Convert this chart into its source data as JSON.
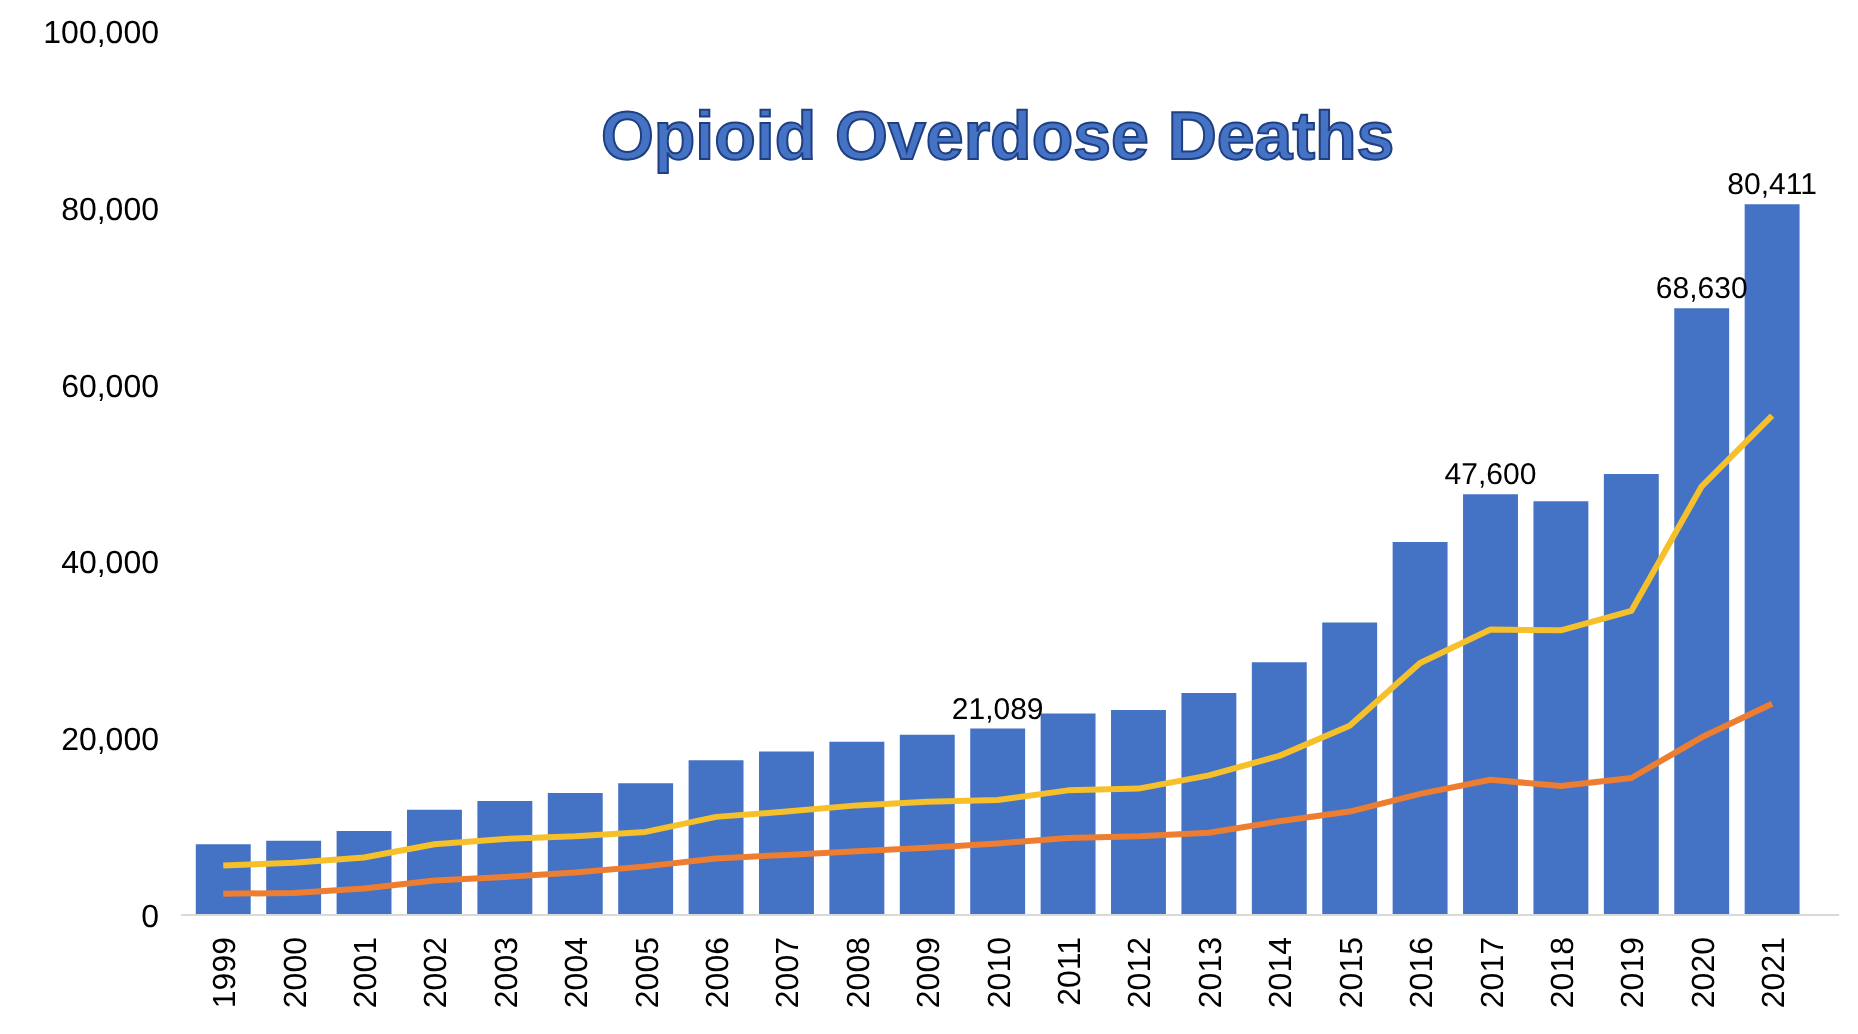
{
  "chart_data": {
    "type": "bar",
    "title": "Opioid Overdose Deaths",
    "categories": [
      "1999",
      "2000",
      "2001",
      "2002",
      "2003",
      "2004",
      "2005",
      "2006",
      "2007",
      "2008",
      "2009",
      "2010",
      "2011",
      "2012",
      "2013",
      "2014",
      "2015",
      "2016",
      "2017",
      "2018",
      "2019",
      "2020",
      "2021"
    ],
    "ylim": [
      0,
      100000
    ],
    "yticks": [
      0,
      {
        "value": 20000,
        "label": "20,000"
      },
      {
        "value": 40000,
        "label": "40,000"
      },
      {
        "value": 60000,
        "label": "60,000"
      },
      {
        "value": 80000,
        "label": "80,000"
      },
      {
        "value": 100000,
        "label": "100,000"
      }
    ],
    "grid": false,
    "series": [
      {
        "color": "#4472c4",
        "values": [
          8000,
          8400,
          9500,
          11900,
          12900,
          13800,
          14900,
          17500,
          18500,
          19600,
          20400,
          21089,
          22800,
          23200,
          25100,
          28600,
          33100,
          42200,
          47600,
          46800,
          49900,
          68630,
          80411
        ],
        "value_labels": [
          null,
          null,
          null,
          null,
          null,
          null,
          null,
          null,
          null,
          null,
          null,
          "21,089",
          null,
          null,
          null,
          null,
          null,
          null,
          "47,600",
          null,
          null,
          "68,630",
          "80,411"
        ]
      },
      {
        "type": "line",
        "color": "#f5c02a",
        "values": [
          5600,
          5900,
          6500,
          8000,
          8600,
          8900,
          9400,
          11100,
          11700,
          12400,
          12800,
          13000,
          14100,
          14300,
          15800,
          18000,
          21400,
          28500,
          32300,
          32200,
          34400,
          48500,
          56500
        ]
      },
      {
        "type": "line",
        "color": "#ed7d31",
        "values": [
          2400,
          2500,
          3000,
          3900,
          4300,
          4800,
          5500,
          6400,
          6800,
          7200,
          7600,
          8100,
          8700,
          8900,
          9300,
          10600,
          11700,
          13700,
          15300,
          14600,
          15500,
          20100,
          23900
        ]
      }
    ]
  }
}
